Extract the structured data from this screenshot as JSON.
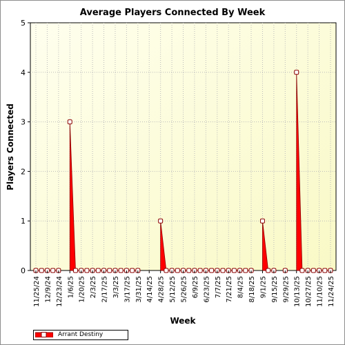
{
  "chart_data": {
    "type": "area",
    "title": "Average Players Connected By Week",
    "xlabel": "Week",
    "ylabel": "Players Connected",
    "ylim": [
      0,
      5
    ],
    "yticks": [
      0,
      1,
      2,
      3,
      4,
      5
    ],
    "grid": "dotted",
    "legend_position": "bottom-left",
    "x": [
      "11/25/24",
      "12/2/24",
      "12/9/24",
      "12/16/24",
      "12/23/24",
      "12/30/24",
      "1/6/25",
      "1/13/25",
      "1/20/25",
      "1/27/25",
      "2/3/25",
      "2/10/25",
      "2/17/25",
      "2/24/25",
      "3/3/25",
      "3/10/25",
      "3/17/25",
      "3/24/25",
      "3/31/25",
      "4/7/25",
      "4/14/25",
      "4/21/25",
      "4/28/25",
      "5/5/25",
      "5/12/25",
      "5/19/25",
      "5/26/25",
      "6/2/25",
      "6/9/25",
      "6/16/25",
      "6/23/25",
      "6/30/25",
      "7/7/25",
      "7/14/25",
      "7/21/25",
      "7/28/25",
      "8/4/25",
      "8/11/25",
      "8/18/25",
      "8/25/25",
      "9/1/25",
      "9/8/25",
      "9/15/25",
      "9/22/25",
      "9/29/25",
      "10/6/25",
      "10/13/25",
      "10/20/25",
      "10/27/25",
      "11/3/25",
      "11/10/25",
      "11/17/25",
      "11/24/25"
    ],
    "x_tick_labels": [
      "11/25/24",
      "12/9/24",
      "12/23/24",
      "1/6/25",
      "1/20/25",
      "2/3/25",
      "2/17/25",
      "3/3/25",
      "3/17/25",
      "3/31/25",
      "4/14/25",
      "4/28/25",
      "5/12/25",
      "5/26/25",
      "6/9/25",
      "6/23/25",
      "7/7/25",
      "7/21/25",
      "8/4/25",
      "8/18/25",
      "9/1/25",
      "9/15/25",
      "9/29/25",
      "10/13/25",
      "10/27/25",
      "11/10/25",
      "11/24/25"
    ],
    "series": [
      {
        "name": "Arrant Destiny",
        "color": "#ff0000",
        "values": [
          0,
          0,
          0,
          0,
          0,
          null,
          3,
          0,
          0,
          0,
          0,
          0,
          0,
          0,
          0,
          0,
          0,
          0,
          0,
          null,
          null,
          null,
          1,
          0,
          0,
          0,
          0,
          0,
          0,
          0,
          0,
          0,
          0,
          0,
          0,
          0,
          0,
          0,
          0,
          null,
          1,
          0,
          0,
          null,
          0,
          null,
          4,
          0,
          0,
          0,
          0,
          0,
          0
        ]
      }
    ]
  },
  "colors": {
    "fill": "#ff0000",
    "outline": "#8b0000",
    "bg_top": "#fefee4",
    "bg_bottom": "#f9f9c8"
  }
}
